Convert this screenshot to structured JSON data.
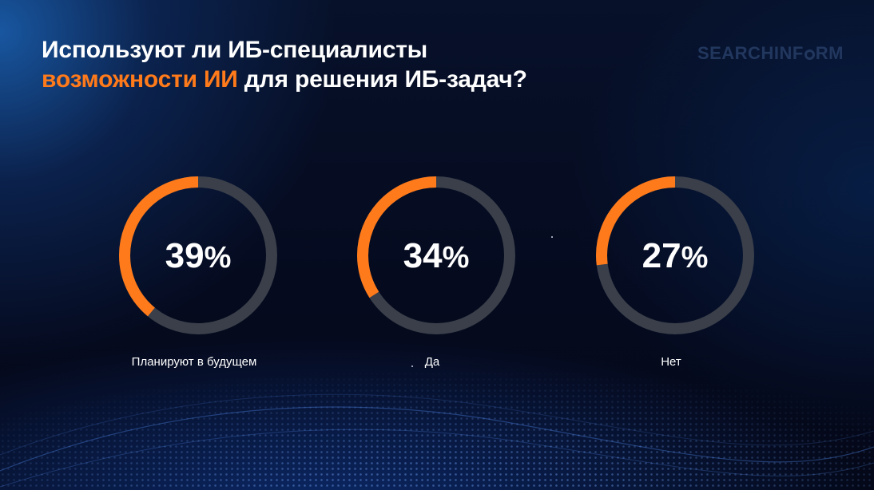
{
  "title": {
    "line1": "Используют ли ИБ-специалисты",
    "line2_accent": "возможности ИИ",
    "line2_rest": " для решения ИБ-задач?"
  },
  "logo": {
    "part1": "SEARCHINF",
    "part2": "RM"
  },
  "chart_data": {
    "type": "pie",
    "style": "donut-rings",
    "categories": [
      "Планируют в будущем",
      "Да",
      "Нет"
    ],
    "values": [
      39,
      34,
      27
    ],
    "value_labels": [
      "39%",
      "34%",
      "27%"
    ],
    "unit": "%"
  },
  "colors": {
    "accent": "#ff7a1a",
    "track": "#3a3f4a",
    "text": "#ffffff",
    "background": "#050a1c"
  }
}
